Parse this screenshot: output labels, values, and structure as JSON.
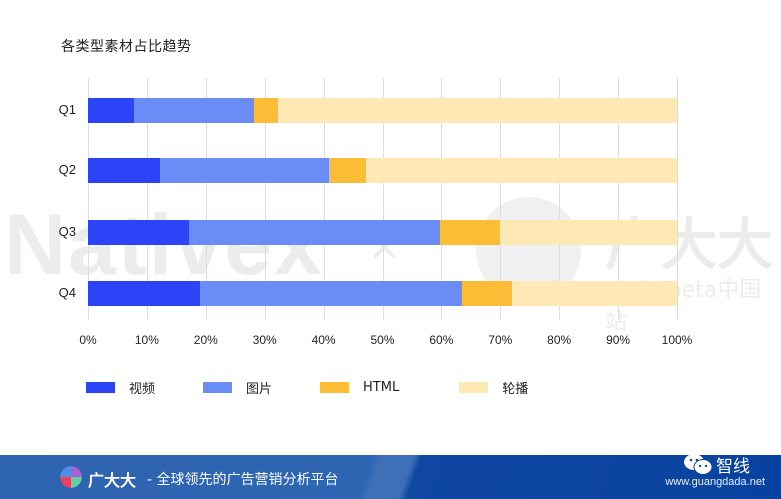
{
  "chart_data": {
    "type": "bar",
    "orientation": "horizontal",
    "stacked": "percent",
    "title": "各类型素材占比趋势",
    "categories": [
      "Q1",
      "Q2",
      "Q3",
      "Q4"
    ],
    "series": [
      {
        "name": "视频",
        "color": "#2b44f7",
        "values": [
          7.8,
          12.2,
          17.1,
          19.0
        ]
      },
      {
        "name": "图片",
        "color": "#6a8cf7",
        "values": [
          20.4,
          28.7,
          42.7,
          44.5
        ]
      },
      {
        "name": "HTML",
        "color": "#fdbc35",
        "values": [
          4.1,
          6.3,
          10.2,
          8.5
        ]
      },
      {
        "name": "轮播",
        "color": "#fee8b4",
        "values": [
          67.7,
          52.8,
          30.0,
          28.0
        ]
      }
    ],
    "xlabel": "",
    "ylabel": "",
    "xlim": [
      0,
      100
    ],
    "x_ticks": [
      "0%",
      "10%",
      "20%",
      "30%",
      "40%",
      "50%",
      "60%",
      "70%",
      "80%",
      "90%",
      "100%"
    ],
    "grid": true,
    "legend_position": "bottom"
  },
  "watermark": {
    "left": "Nativex",
    "cross": "×",
    "right_cn": "广大大",
    "right_sub": "socialpeta中国站"
  },
  "footer": {
    "brand": "广大大",
    "slogan": "- 全球领先的广告营销分析平台",
    "url": "www.guangdada.net",
    "wechat_label": "智线"
  }
}
